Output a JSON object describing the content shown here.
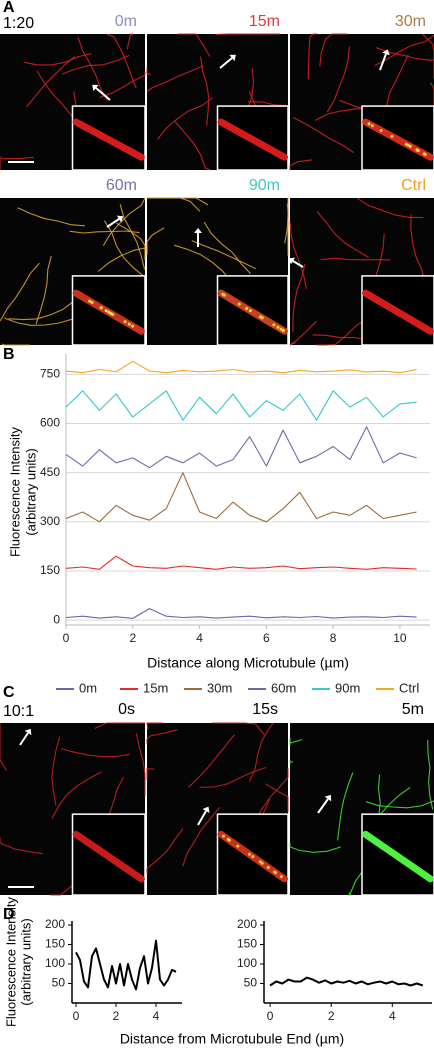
{
  "panel_labels": [
    "A",
    "B",
    "C",
    "D"
  ],
  "panel_a": {
    "ratio": "1:20",
    "images": [
      {
        "label": "0m",
        "color": "#8c8cd0"
      },
      {
        "label": "15m",
        "color": "#e23a3a"
      },
      {
        "label": "30m",
        "color": "#a87c4a"
      },
      {
        "label": "60m",
        "color": "#7672b4"
      },
      {
        "label": "90m",
        "color": "#3cc8c8"
      },
      {
        "label": "Ctrl",
        "color": "#f0a020"
      }
    ]
  },
  "panel_c": {
    "ratio": "10:1",
    "images": [
      {
        "label": "0s",
        "color": "#000000"
      },
      {
        "label": "15s",
        "color": "#000000"
      },
      {
        "label": "5m",
        "color": "#000000"
      }
    ]
  },
  "chart_data": [
    {
      "type": "line",
      "x": [
        0,
        0.5,
        1,
        1.5,
        2,
        2.5,
        3,
        3.5,
        4,
        4.5,
        5,
        5.5,
        6,
        6.5,
        7,
        7.5,
        8,
        8.5,
        9,
        9.5,
        10,
        10.5
      ],
      "series": [
        {
          "name": "0m",
          "color": "#6b64b0",
          "values": [
            8,
            12,
            6,
            10,
            5,
            35,
            12,
            8,
            10,
            6,
            9,
            12,
            7,
            10,
            8,
            11,
            6,
            9,
            10,
            8,
            12,
            9
          ]
        },
        {
          "name": "15m",
          "color": "#e52a2a",
          "values": [
            158,
            162,
            155,
            195,
            165,
            160,
            158,
            165,
            160,
            155,
            162,
            158,
            160,
            165,
            157,
            160,
            162,
            158,
            155,
            160,
            158,
            156
          ]
        },
        {
          "name": "30m",
          "color": "#9b6b3a",
          "values": [
            310,
            330,
            300,
            350,
            320,
            305,
            340,
            450,
            330,
            310,
            360,
            320,
            300,
            340,
            390,
            310,
            330,
            320,
            350,
            310,
            320,
            330
          ]
        },
        {
          "name": "60m",
          "color": "#6e6aa8",
          "values": [
            505,
            470,
            520,
            480,
            495,
            465,
            500,
            480,
            510,
            470,
            490,
            560,
            470,
            580,
            480,
            500,
            530,
            490,
            590,
            480,
            510,
            495
          ]
        },
        {
          "name": "90m",
          "color": "#33c9c9",
          "values": [
            650,
            700,
            640,
            690,
            620,
            660,
            700,
            610,
            680,
            630,
            690,
            620,
            670,
            640,
            690,
            610,
            700,
            650,
            680,
            620,
            660,
            665
          ]
        },
        {
          "name": "Ctrl",
          "color": "#f5a623",
          "values": [
            760,
            755,
            765,
            758,
            790,
            760,
            755,
            762,
            758,
            760,
            765,
            757,
            760,
            755,
            762,
            758,
            760,
            764,
            757,
            760,
            755,
            765
          ]
        }
      ],
      "xlim": [
        0,
        10.9
      ],
      "ylim": [
        -15,
        800
      ],
      "xticks": [
        0,
        2,
        4,
        6,
        8,
        10
      ],
      "yticks": [
        0,
        150,
        300,
        450,
        600,
        750
      ],
      "xlabel": "Distance along Microtubule (µm)",
      "ylabel": [
        "Fluorescence Intensity",
        "(arbitrary units)"
      ],
      "grid": true,
      "legend": "bottom"
    },
    {
      "type": "line",
      "x": [
        0,
        0.2,
        0.4,
        0.6,
        0.8,
        1,
        1.2,
        1.4,
        1.6,
        1.8,
        2,
        2.2,
        2.4,
        2.6,
        2.8,
        3,
        3.2,
        3.4,
        3.6,
        3.8,
        4,
        4.2,
        4.4,
        4.6,
        4.8,
        5
      ],
      "series": [
        {
          "color": "#000000",
          "values": [
            130,
            110,
            55,
            40,
            120,
            140,
            100,
            60,
            40,
            95,
            50,
            100,
            45,
            100,
            60,
            35,
            90,
            120,
            50,
            90,
            160,
            60,
            45,
            60,
            85,
            80
          ]
        }
      ],
      "xlim": [
        -0.2,
        5.3
      ],
      "ylim": [
        0,
        200
      ],
      "xticks": [
        0,
        2,
        4
      ],
      "yticks": [
        50,
        100,
        150,
        200
      ],
      "xlabel": "Distance from Microtubule End (µm)",
      "ylabel": [
        "Fluorescence Intensity",
        "(arbitrary units)"
      ],
      "grid": false
    },
    {
      "type": "line",
      "x": [
        0,
        0.2,
        0.4,
        0.6,
        0.8,
        1,
        1.2,
        1.4,
        1.6,
        1.8,
        2,
        2.2,
        2.4,
        2.6,
        2.8,
        3,
        3.2,
        3.4,
        3.6,
        3.8,
        4,
        4.2,
        4.4,
        4.6,
        4.8,
        5
      ],
      "series": [
        {
          "color": "#000000",
          "values": [
            45,
            55,
            50,
            60,
            55,
            55,
            65,
            60,
            52,
            58,
            50,
            55,
            52,
            57,
            50,
            55,
            48,
            52,
            55,
            50,
            55,
            48,
            50,
            45,
            50,
            45
          ]
        }
      ],
      "xlim": [
        -0.2,
        5.3
      ],
      "ylim": [
        0,
        200
      ],
      "xticks": [
        0,
        2,
        4
      ],
      "yticks": [
        50,
        100,
        150,
        200
      ],
      "grid": false
    }
  ]
}
